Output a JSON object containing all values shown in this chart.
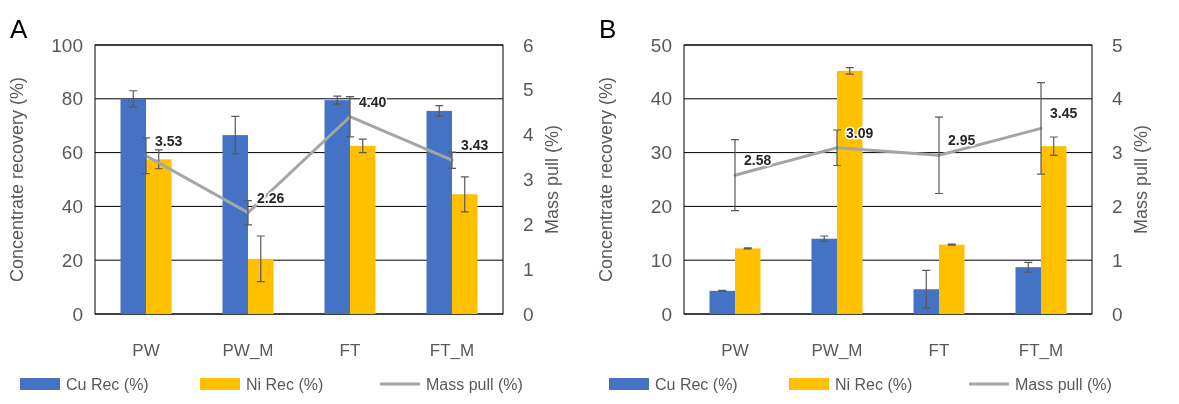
{
  "chart_data": [
    {
      "type": "bar",
      "title": "A",
      "ylabel": "Concentrate recovery (%)",
      "y2label": "Mass pull (%)",
      "categories": [
        "PW",
        "PW_M",
        "FT",
        "FT_M"
      ],
      "series": [
        {
          "name": "Cu Rec (%)",
          "color": "#4472c4",
          "values": [
            80,
            66.5,
            79.5,
            75.5
          ],
          "errors": [
            3,
            7,
            1.5,
            2
          ]
        },
        {
          "name": "Ni Rec (%)",
          "color": "#ffc000",
          "values": [
            57.5,
            20.5,
            62.5,
            44.5
          ],
          "errors": [
            3.5,
            8.5,
            2.5,
            6.5
          ]
        },
        {
          "name": "Mass pull (%)",
          "type": "line",
          "axis": "y2",
          "color": "#a5a5a5",
          "values": [
            3.53,
            2.26,
            4.4,
            3.43
          ],
          "errors": [
            0.4,
            0.27,
            0.45,
            0.18
          ],
          "value_labels": [
            "3.53",
            "2.26",
            "4.40",
            "3.43"
          ]
        }
      ],
      "ylim": [
        0,
        100
      ],
      "yticks": [
        0,
        20,
        40,
        60,
        80,
        100
      ],
      "y2lim": [
        0,
        6
      ],
      "y2ticks": [
        0,
        1,
        2,
        3,
        4,
        5,
        6
      ],
      "grid": "y",
      "legend": "bottom",
      "marker": "none",
      "line_style": "solid"
    },
    {
      "type": "bar",
      "title": "B",
      "ylabel": "Concentrate recovery (%)",
      "y2label": "Mass pull (%)",
      "categories": [
        "PW",
        "PW_M",
        "FT",
        "FT_M"
      ],
      "series": [
        {
          "name": "Cu Rec (%)",
          "color": "#4472c4",
          "values": [
            4.3,
            14,
            4.6,
            8.7
          ],
          "errors": [
            0.1,
            0.5,
            3.5,
            0.9
          ]
        },
        {
          "name": "Ni Rec (%)",
          "color": "#ffc000",
          "values": [
            12.2,
            45.2,
            12.9,
            31.2
          ],
          "errors": [
            0.1,
            0.6,
            0.1,
            1.7
          ]
        },
        {
          "name": "Mass pull (%)",
          "type": "line",
          "axis": "y2",
          "color": "#a5a5a5",
          "values": [
            2.58,
            3.09,
            2.95,
            3.45
          ],
          "errors": [
            0.66,
            0.33,
            0.71,
            0.85
          ],
          "value_labels": [
            "2.58",
            "3.09",
            "2.95",
            "3.45"
          ]
        }
      ],
      "ylim": [
        0,
        50
      ],
      "yticks": [
        0,
        10,
        20,
        30,
        40,
        50
      ],
      "y2lim": [
        0,
        5
      ],
      "y2ticks": [
        0,
        1,
        2,
        3,
        4,
        5
      ],
      "grid": "y",
      "legend": "bottom",
      "marker": "none",
      "line_style": "solid"
    }
  ]
}
